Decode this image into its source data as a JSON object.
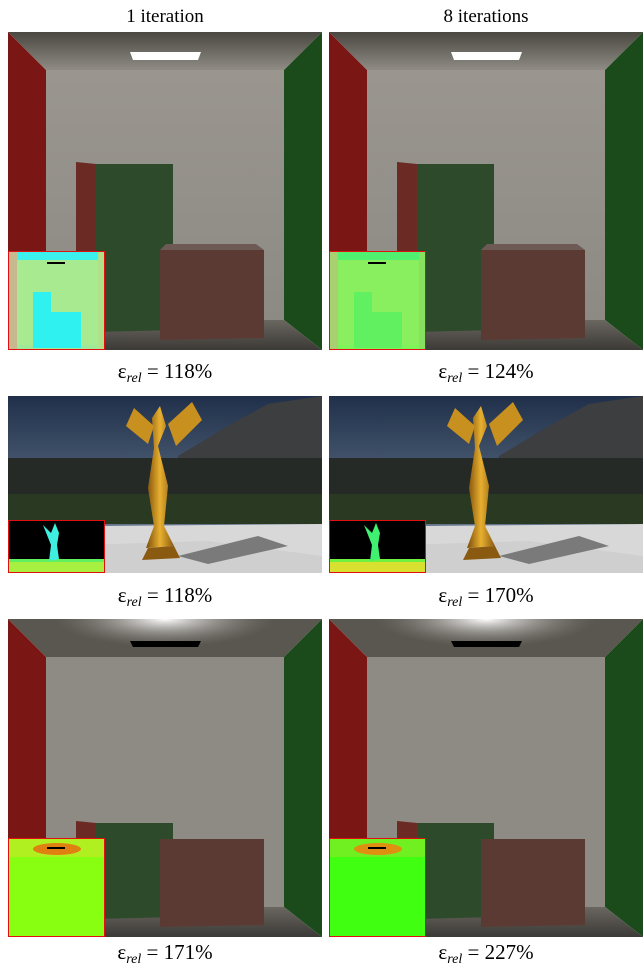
{
  "columns": [
    {
      "label": "1 iteration"
    },
    {
      "label": "8 iterations"
    }
  ],
  "rows": [
    {
      "scene": "cornell-box",
      "errors": [
        "118%",
        "124%"
      ]
    },
    {
      "scene": "statue-environment",
      "errors": [
        "118%",
        "170%"
      ]
    },
    {
      "scene": "cornell-box-noisy",
      "errors": [
        "171%",
        "227%"
      ]
    }
  ],
  "caption": {
    "symbol": "ε",
    "subscript": "rel",
    "equals": " = "
  },
  "colors": {
    "inset_border": "#e01010",
    "left_wall": "#8a1a18",
    "right_wall": "#1f5a1f",
    "gold": "#d9a420"
  }
}
